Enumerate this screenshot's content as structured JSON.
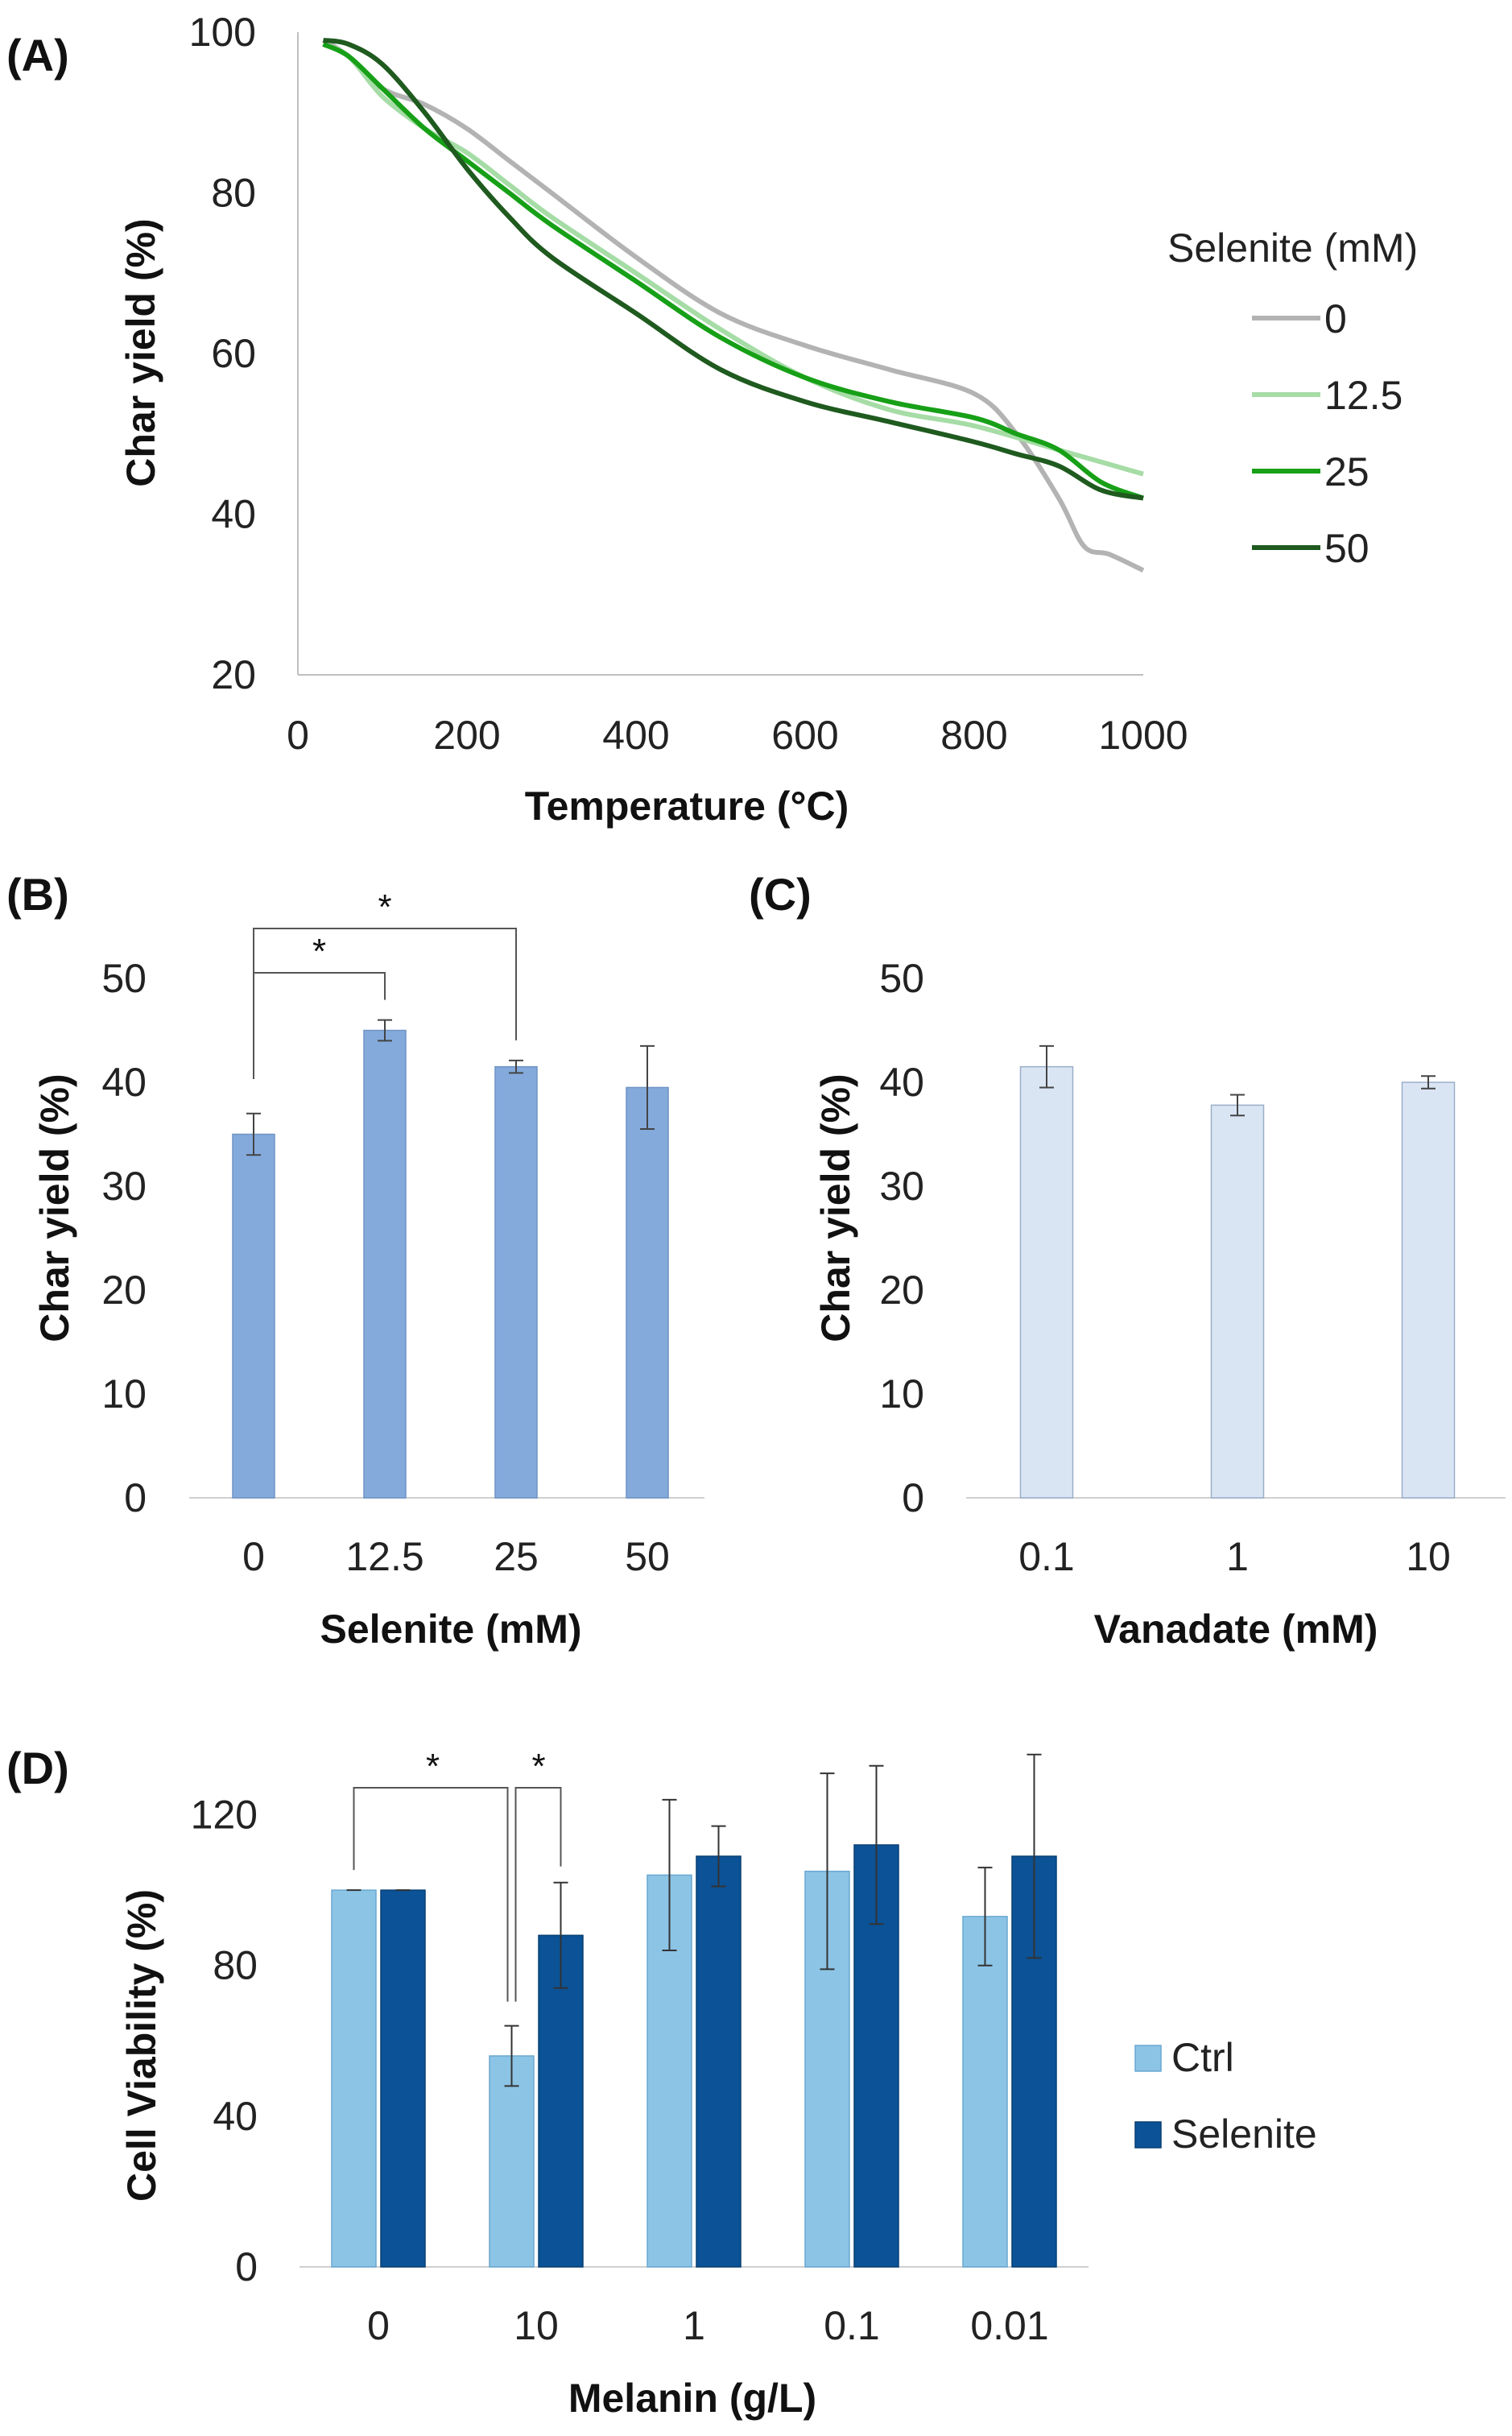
{
  "chart_data": [
    {
      "panel": "(A)",
      "type": "line",
      "xlabel": "Temperature (°C)",
      "ylabel": "Char yield (%)",
      "xlim": [
        0,
        1000
      ],
      "ylim": [
        20,
        100
      ],
      "xticks": [
        "0",
        "200",
        "400",
        "600",
        "800",
        "1000"
      ],
      "yticks": [
        "20",
        "40",
        "60",
        "80",
        "100"
      ],
      "legend_title": "Selenite (mM)",
      "legend_position": "right",
      "series": [
        {
          "name": "0",
          "color": "#b3b3b3",
          "x": [
            30,
            60,
            100,
            150,
            200,
            250,
            300,
            400,
            500,
            600,
            700,
            800,
            850,
            900,
            930,
            960,
            1000
          ],
          "y": [
            99,
            97,
            93,
            91,
            88,
            84,
            80,
            72,
            65,
            61,
            58,
            55,
            50,
            42,
            36,
            35,
            33
          ]
        },
        {
          "name": "12.5",
          "color": "#a6dca6",
          "x": [
            30,
            60,
            100,
            150,
            200,
            250,
            300,
            400,
            500,
            600,
            700,
            800,
            900,
            1000
          ],
          "y": [
            98.5,
            97,
            92,
            88,
            85,
            81,
            77,
            70,
            63,
            57,
            53,
            51,
            48,
            45
          ]
        },
        {
          "name": "25",
          "color": "#17a017",
          "x": [
            30,
            60,
            100,
            150,
            200,
            250,
            300,
            400,
            500,
            600,
            700,
            800,
            850,
            900,
            950,
            1000
          ],
          "y": [
            98.5,
            97,
            93,
            88,
            84,
            80,
            76,
            69,
            62,
            57,
            54,
            52,
            50,
            48,
            44,
            42
          ]
        },
        {
          "name": "50",
          "color": "#1f5a1f",
          "x": [
            30,
            60,
            100,
            150,
            200,
            250,
            300,
            400,
            500,
            600,
            700,
            800,
            850,
            900,
            950,
            1000
          ],
          "y": [
            99,
            98.5,
            96,
            90,
            83,
            77,
            72,
            65,
            58,
            54,
            51.5,
            49,
            47.5,
            46,
            43,
            42
          ]
        }
      ]
    },
    {
      "panel": "(B)",
      "type": "bar",
      "xlabel": "Selenite (mM)",
      "ylabel": "Char yield (%)",
      "ylim": [
        0,
        50
      ],
      "yticks": [
        "0",
        "10",
        "20",
        "30",
        "40",
        "50"
      ],
      "categories": [
        "0",
        "12.5",
        "25",
        "50"
      ],
      "values": [
        35,
        45,
        41.5,
        39.5
      ],
      "errors": [
        2,
        1,
        0.6,
        4
      ],
      "color": "#84aadc",
      "significance": [
        {
          "from": 0,
          "to": 1,
          "label": "*"
        },
        {
          "from": 0,
          "to": 2,
          "label": "*"
        }
      ]
    },
    {
      "panel": "(C)",
      "type": "bar",
      "xlabel": "Vanadate (mM)",
      "ylabel": "Char yield (%)",
      "ylim": [
        0,
        50
      ],
      "yticks": [
        "0",
        "10",
        "20",
        "30",
        "40",
        "50"
      ],
      "categories": [
        "0.1",
        "1",
        "10"
      ],
      "values": [
        41.5,
        37.8,
        40
      ],
      "errors": [
        2,
        1,
        0.6
      ],
      "color": "#dae5f4"
    },
    {
      "panel": "(D)",
      "type": "bar",
      "xlabel": "Melanin (g/L)",
      "ylabel": "Cell Viability (%)",
      "ylim": [
        0,
        140
      ],
      "yticks": [
        "0",
        "40",
        "80",
        "120"
      ],
      "categories": [
        "0",
        "10",
        "1",
        "0.1",
        "0.01"
      ],
      "legend_position": "right",
      "series": [
        {
          "name": "Ctrl",
          "color": "#8cc4e6",
          "values": [
            100,
            56,
            104,
            105,
            93
          ],
          "errors": [
            0,
            8,
            20,
            26,
            13
          ]
        },
        {
          "name": "Selenite",
          "color": "#0b5296",
          "values": [
            100,
            88,
            109,
            112,
            109
          ],
          "errors": [
            0,
            14,
            8,
            21,
            27
          ]
        }
      ],
      "significance": [
        {
          "label": "*"
        },
        {
          "label": "*"
        }
      ]
    }
  ]
}
